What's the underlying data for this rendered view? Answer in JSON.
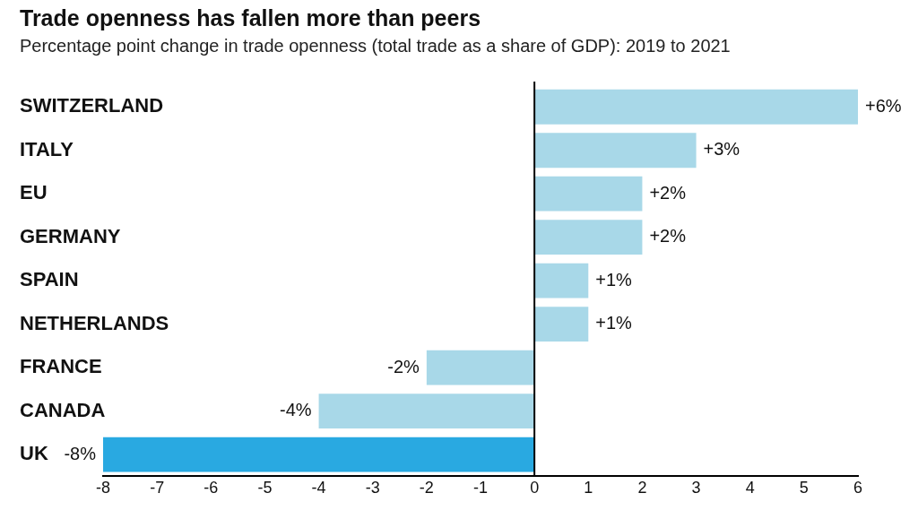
{
  "chart_data": {
    "type": "bar",
    "orientation": "horizontal",
    "title": "Trade openness has fallen more than peers",
    "subtitle": "Percentage point change in trade openness (total trade as a share of GDP): 2019 to 2021",
    "categories": [
      "SWITZERLAND",
      "ITALY",
      "EU",
      "GERMANY",
      "SPAIN",
      "NETHERLANDS",
      "FRANCE",
      "CANADA",
      "UK"
    ],
    "values": [
      6,
      3,
      2,
      2,
      1,
      1,
      -2,
      -4,
      -8
    ],
    "colors": [
      "#a8d8e8",
      "#a8d8e8",
      "#a8d8e8",
      "#a8d8e8",
      "#a8d8e8",
      "#a8d8e8",
      "#a8d8e8",
      "#a8d8e8",
      "#29a9e1"
    ],
    "value_labels": [
      "+6%",
      "+3%",
      "+2%",
      "+2%",
      "+1%",
      "+1%",
      "-2%",
      "-4%",
      "-8%"
    ],
    "xlim": [
      -8,
      6
    ],
    "xticks": [
      -8,
      -7,
      -6,
      -5,
      -4,
      -3,
      -2,
      -1,
      0,
      1,
      2,
      3,
      4,
      5,
      6
    ],
    "ref_lines": [
      {
        "axis": "x",
        "value": 0,
        "color": "#000000"
      }
    ],
    "legend": false
  }
}
